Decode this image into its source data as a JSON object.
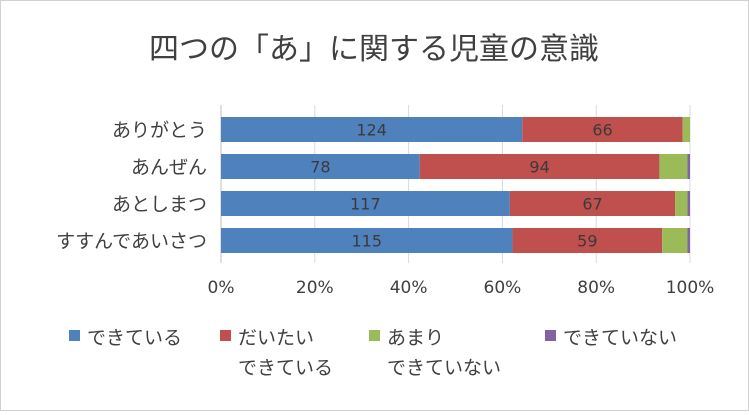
{
  "chart_data": {
    "type": "bar",
    "orientation": "horizontal",
    "stacked": "percent",
    "title": "四つの「あ」に関する児童の意識",
    "categories": [
      "ありがとう",
      "あんぜん",
      "あとしまつ",
      "すすんであいさつ"
    ],
    "series": [
      {
        "name": "できている",
        "legend_lines": [
          "できている"
        ],
        "color": "#4f81bd",
        "values": [
          124,
          78,
          117,
          115
        ],
        "labels": [
          "124",
          "78",
          "117",
          "115"
        ]
      },
      {
        "name": "だいたいできている",
        "legend_lines": [
          "だいたい",
          "できている"
        ],
        "color": "#c0504d",
        "values": [
          66,
          94,
          67,
          59
        ],
        "labels": [
          "66",
          "94",
          "67",
          "59"
        ]
      },
      {
        "name": "あまりできていない",
        "legend_lines": [
          "あまり",
          "できていない"
        ],
        "color": "#9bbb59",
        "values": [
          3,
          11,
          5,
          10
        ],
        "labels": [
          "",
          "",
          "",
          ""
        ]
      },
      {
        "name": "できていない",
        "legend_lines": [
          "できていない"
        ],
        "color": "#8064a2",
        "values": [
          0,
          1,
          1,
          1
        ],
        "labels": [
          "",
          "",
          "",
          ""
        ]
      }
    ],
    "xaxis": {
      "ticks": [
        "0%",
        "20%",
        "40%",
        "60%",
        "80%",
        "100%"
      ],
      "range": [
        0,
        100
      ]
    },
    "grid": true,
    "legend_position": "bottom"
  }
}
